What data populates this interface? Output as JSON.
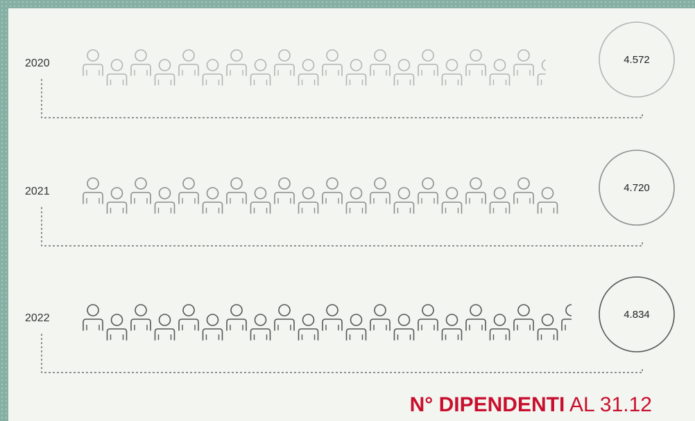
{
  "chart_data": {
    "type": "pictogram",
    "title_bold": "N° DIPENDENTI",
    "title_rest": "AL 31.12",
    "series_colors": [
      "#b3b3b3",
      "#8c8c8c",
      "#555555"
    ],
    "categories": [
      "2020",
      "2021",
      "2022"
    ],
    "values": [
      4572,
      4720,
      4834
    ],
    "value_labels": [
      "4.572",
      "4.720",
      "4.834"
    ],
    "icon": "person-icon"
  }
}
